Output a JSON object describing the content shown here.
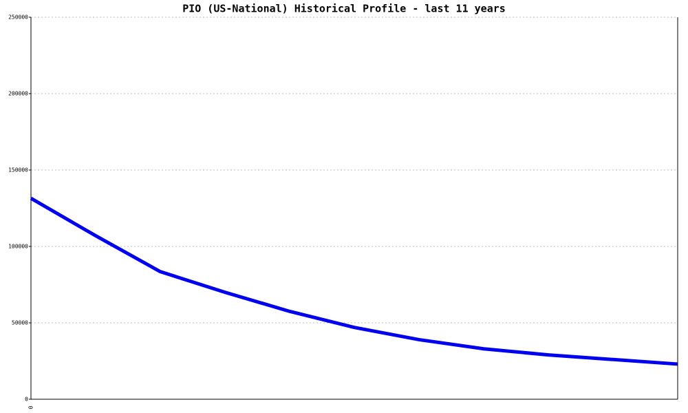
{
  "chart_data": {
    "type": "line",
    "title": "PIO (US-National) Historical Profile - last 11 years",
    "categories": [
      "0",
      null,
      null,
      null,
      null,
      null,
      null,
      null,
      null,
      null,
      null
    ],
    "series": [
      {
        "name": "PIO",
        "color": "#0000ee",
        "values": [
          131500,
          107000,
          83500,
          70000,
          57500,
          47000,
          39000,
          33000,
          29000,
          26000,
          23000
        ]
      }
    ],
    "ylim": [
      0,
      250000
    ],
    "yticks": [
      0,
      50000,
      100000,
      150000,
      200000,
      250000
    ],
    "grid": true
  }
}
